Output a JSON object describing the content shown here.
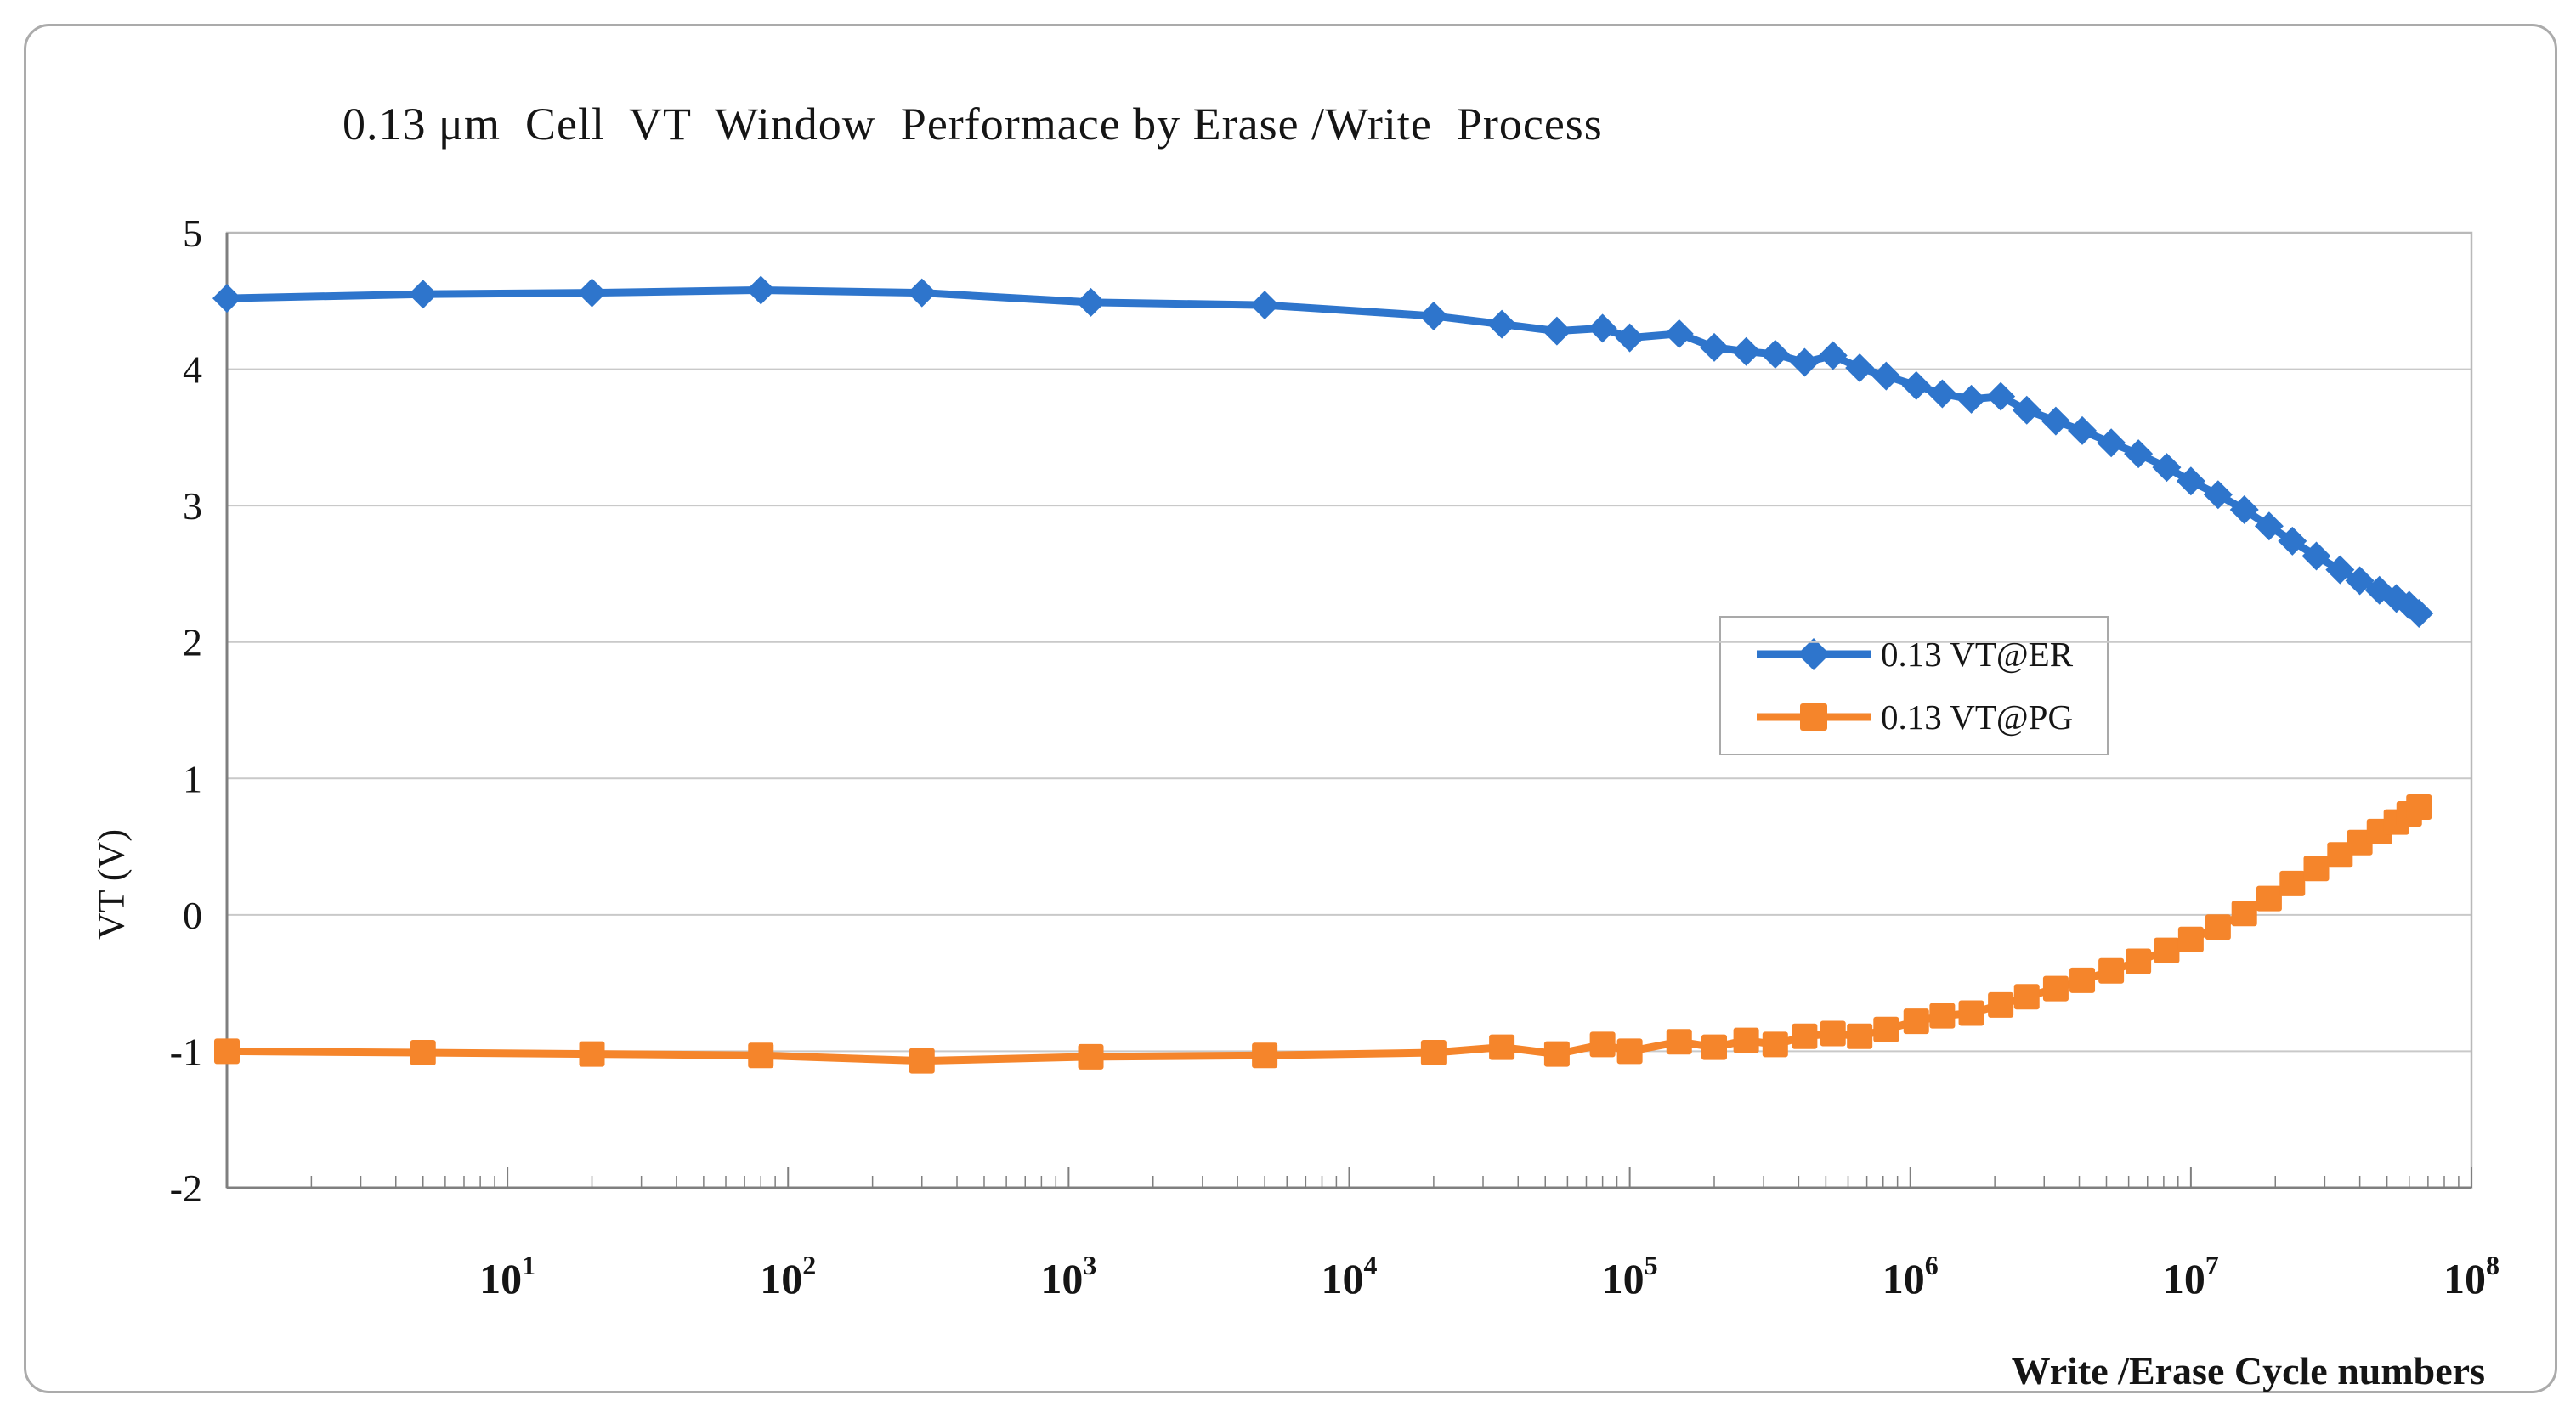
{
  "figure": {
    "title": "0.13 μm  Cell  VT  Window  Performace by Erase /Write  Process"
  },
  "axes": {
    "y_label": "VT (V)",
    "x_label": "Write /Erase Cycle numbers",
    "y_ticks": [
      5,
      4,
      3,
      2,
      1,
      0,
      -1,
      -2
    ],
    "x_tick_exponents": [
      1,
      2,
      3,
      4,
      5,
      6,
      7,
      8
    ],
    "x_log_min_exp": 0,
    "x_log_max_exp": 8,
    "y_min": -2,
    "y_max": 5
  },
  "legend": {
    "items": [
      {
        "label": "0.13 VT@ER",
        "color": "#2E75CC",
        "marker": "diamond"
      },
      {
        "label": "0.13 VT@PG",
        "color": "#F5852B",
        "marker": "square"
      }
    ]
  },
  "colors": {
    "grid": "#C9C9C9",
    "plot_border": "#B9B9B9",
    "axis": "#7F7F7F",
    "text": "#151515",
    "series_er": "#2E75CC",
    "series_pg": "#F5852B"
  },
  "chart_data": {
    "type": "line",
    "title": "0.13 μm Cell VT Window Performace by Erase /Write Process",
    "xlabel": "Write /Erase Cycle numbers",
    "ylabel": "VT (V)",
    "xscale": "log",
    "xlim": [
      1,
      100000000
    ],
    "ylim": [
      -2,
      5
    ],
    "grid": true,
    "legend_position": "middle-right",
    "x": [
      1,
      5,
      20,
      80,
      300,
      1200,
      5000,
      20000,
      35000,
      55000,
      80000,
      100000,
      150000,
      200000,
      260000,
      330000,
      420000,
      530000,
      660000,
      820000,
      1050000,
      1300000,
      1650000,
      2100000,
      2600000,
      3300000,
      4100000,
      5200000,
      6500000,
      8200000,
      10000000,
      12500000,
      15500000,
      19000000,
      23000000,
      28000000,
      34000000,
      40000000,
      47000000,
      54000000,
      60000000,
      65000000
    ],
    "series": [
      {
        "name": "0.13 VT@ER",
        "marker": "diamond",
        "values": [
          4.52,
          4.55,
          4.56,
          4.58,
          4.56,
          4.49,
          4.47,
          4.39,
          4.33,
          4.28,
          4.3,
          4.23,
          4.26,
          4.16,
          4.13,
          4.11,
          4.05,
          4.1,
          4.01,
          3.95,
          3.88,
          3.82,
          3.78,
          3.8,
          3.7,
          3.62,
          3.55,
          3.46,
          3.38,
          3.28,
          3.18,
          3.08,
          2.97,
          2.85,
          2.74,
          2.63,
          2.53,
          2.45,
          2.38,
          2.32,
          2.27,
          2.21
        ]
      },
      {
        "name": "0.13 VT@PG",
        "marker": "square",
        "values": [
          -1.0,
          -1.01,
          -1.02,
          -1.03,
          -1.07,
          -1.04,
          -1.03,
          -1.01,
          -0.97,
          -1.02,
          -0.95,
          -1.0,
          -0.93,
          -0.97,
          -0.92,
          -0.95,
          -0.89,
          -0.87,
          -0.89,
          -0.84,
          -0.78,
          -0.74,
          -0.72,
          -0.66,
          -0.6,
          -0.54,
          -0.48,
          -0.41,
          -0.34,
          -0.26,
          -0.18,
          -0.09,
          0.01,
          0.12,
          0.23,
          0.34,
          0.44,
          0.53,
          0.61,
          0.68,
          0.74,
          0.79
        ]
      }
    ]
  }
}
